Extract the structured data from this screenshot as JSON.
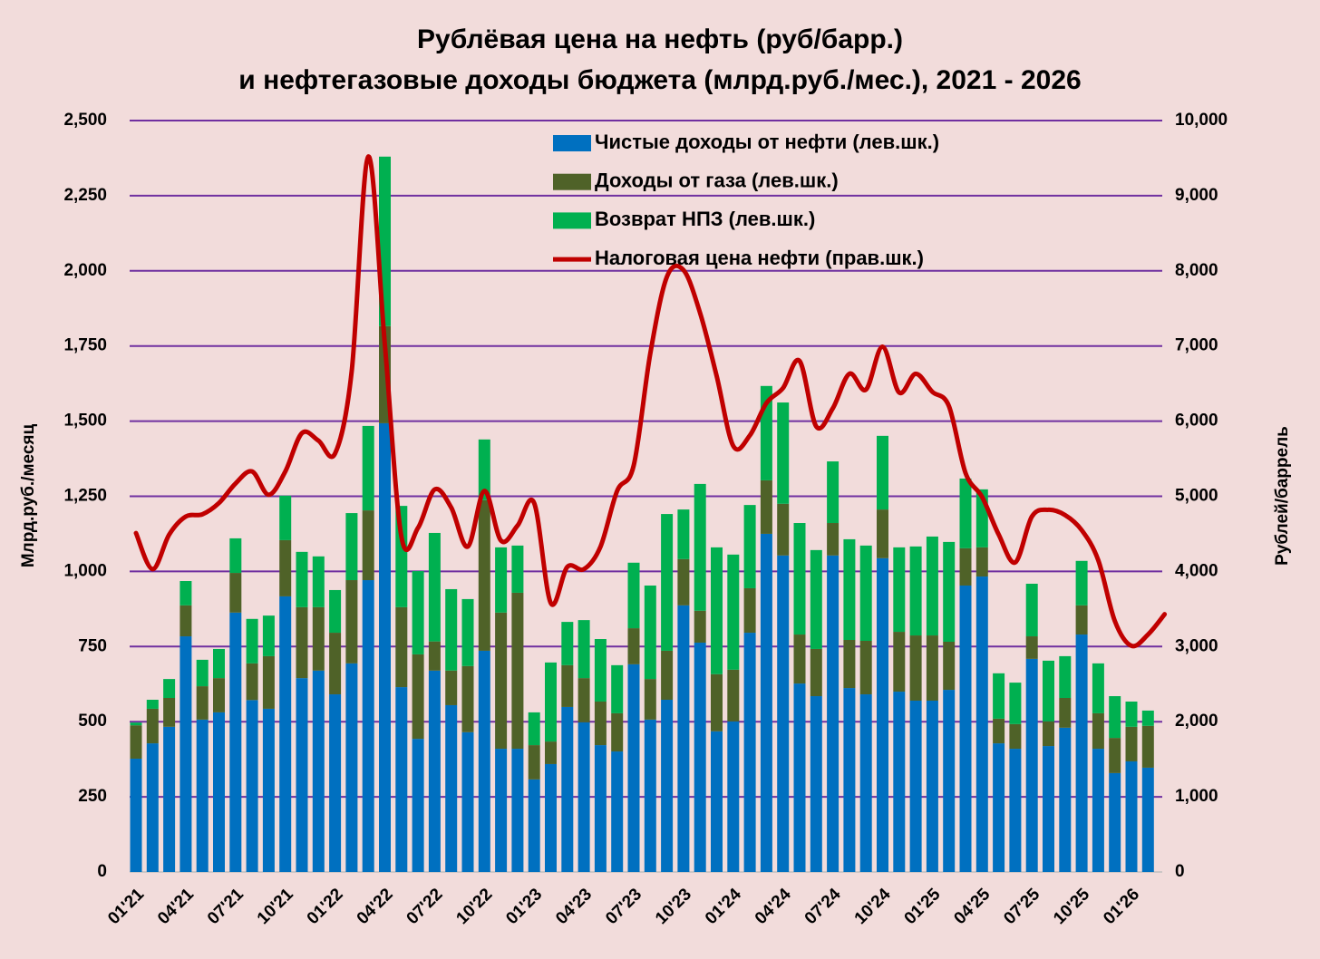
{
  "chart_data": {
    "type": "bar",
    "stacked": true,
    "title": [
      "Рублёвая цена на нефть (руб/барр.)",
      "и нефтегазовые доходы бюджета (млрд.руб./мес.), 2021 - 2026"
    ],
    "y_label": "Млрд.руб./месяц",
    "y2_label": "Рублей/баррель",
    "categories": [
      "01'21",
      null,
      null,
      "04'21",
      null,
      null,
      "07'21",
      null,
      null,
      "10'21",
      null,
      null,
      "01'22",
      null,
      null,
      "04'22",
      null,
      null,
      "07'22",
      null,
      null,
      "10'22",
      null,
      null,
      "01'23",
      null,
      null,
      "04'23",
      null,
      null,
      "07'23",
      null,
      null,
      "10'23",
      null,
      null,
      "01'24",
      null,
      null,
      "04'24",
      null,
      null,
      "07'24",
      null,
      null,
      "10'24",
      null,
      null,
      "01'25",
      null,
      null,
      "04'25",
      null,
      null,
      "07'25",
      null,
      null,
      "10'25",
      null,
      null,
      "01'26",
      null,
      null
    ],
    "ylim": [
      0,
      2500
    ],
    "yticks": [
      0,
      250,
      500,
      750,
      {
        "value": 1000,
        "label": "1,000"
      },
      {
        "value": 1250,
        "label": "1,250"
      },
      {
        "value": 1500,
        "label": "1,500"
      },
      {
        "value": 1750,
        "label": "1,750"
      },
      {
        "value": 2000,
        "label": "2,000"
      },
      {
        "value": 2250,
        "label": "2,250"
      },
      {
        "value": 2500,
        "label": "2,500"
      }
    ],
    "y2lim": [
      0,
      10000
    ],
    "y2ticks": [
      0,
      {
        "value": 1000,
        "label": "1,000"
      },
      {
        "value": 2000,
        "label": "2,000"
      },
      {
        "value": 3000,
        "label": "3,000"
      },
      {
        "value": 4000,
        "label": "4,000"
      },
      {
        "value": 5000,
        "label": "5,000"
      },
      {
        "value": 6000,
        "label": "6,000"
      },
      {
        "value": 7000,
        "label": "7,000"
      },
      {
        "value": 8000,
        "label": "8,000"
      },
      {
        "value": 9000,
        "label": "9,000"
      },
      {
        "value": 10000,
        "label": "10,000"
      }
    ],
    "grid": true,
    "legend": "top",
    "series": [
      {
        "name": "Чистые доходы от нефти (лев.шк.)",
        "color": "#0070c0",
        "values": [
          377,
          428,
          483,
          784,
          507,
          531,
          863,
          572,
          543,
          917,
          645,
          670,
          591,
          694,
          971,
          1493,
          615,
          443,
          670,
          555,
          465,
          736,
          410,
          410,
          308,
          359,
          549,
          498,
          422,
          401,
          691,
          507,
          573,
          887,
          763,
          468,
          501,
          796,
          1125,
          1053,
          627,
          585,
          1053,
          612,
          591,
          1044,
          600,
          570,
          570,
          606,
          953,
          983,
          428,
          410,
          709,
          419,
          480,
          790,
          410,
          329,
          368,
          347,
          null
        ]
      },
      {
        "name": "Доходы от газа (лев.шк.)",
        "color": "#4f6228",
        "values": [
          111,
          115,
          96,
          103,
          111,
          114,
          132,
          122,
          175,
          187,
          236,
          211,
          205,
          277,
          232,
          323,
          266,
          281,
          97,
          115,
          220,
          501,
          453,
          519,
          114,
          75,
          139,
          147,
          145,
          127,
          120,
          135,
          163,
          154,
          106,
          190,
          172,
          148,
          178,
          172,
          163,
          157,
          108,
          160,
          178,
          162,
          199,
          217,
          217,
          160,
          124,
          97,
          82,
          82,
          75,
          82,
          99,
          97,
          118,
          117,
          115,
          139,
          null
        ]
      },
      {
        "name": "Возврат НПЗ  (лев.шк.)",
        "color": "#00b050",
        "values": [
          9,
          30,
          63,
          81,
          88,
          97,
          115,
          148,
          135,
          148,
          184,
          169,
          142,
          223,
          281,
          564,
          337,
          277,
          361,
          271,
          223,
          202,
          217,
          157,
          109,
          263,
          144,
          193,
          208,
          160,
          218,
          311,
          455,
          165,
          422,
          422,
          383,
          277,
          314,
          337,
          371,
          329,
          205,
          335,
          317,
          245,
          281,
          296,
          329,
          332,
          232,
          193,
          151,
          138,
          175,
          202,
          139,
          148,
          166,
          139,
          84,
          51,
          null
        ]
      },
      {
        "name": "Налоговая цена нефти (прав.шк.)",
        "color": "#c00000",
        "type": "line",
        "axis": "y2",
        "values": [
          4510,
          4030,
          4490,
          4730,
          4760,
          4910,
          5170,
          5330,
          5020,
          5330,
          5840,
          5740,
          5570,
          6660,
          9520,
          7020,
          4460,
          4580,
          5090,
          4850,
          4330,
          5070,
          4410,
          4610,
          4910,
          3580,
          4060,
          4030,
          4330,
          5070,
          5410,
          6900,
          7920,
          8010,
          7440,
          6600,
          5670,
          5810,
          6240,
          6440,
          6800,
          5930,
          6170,
          6630,
          6420,
          6990,
          6380,
          6630,
          6390,
          6200,
          5310,
          4990,
          4490,
          4120,
          4730,
          4820,
          4750,
          4550,
          4150,
          3340,
          3010,
          3160,
          3430
        ]
      }
    ]
  }
}
